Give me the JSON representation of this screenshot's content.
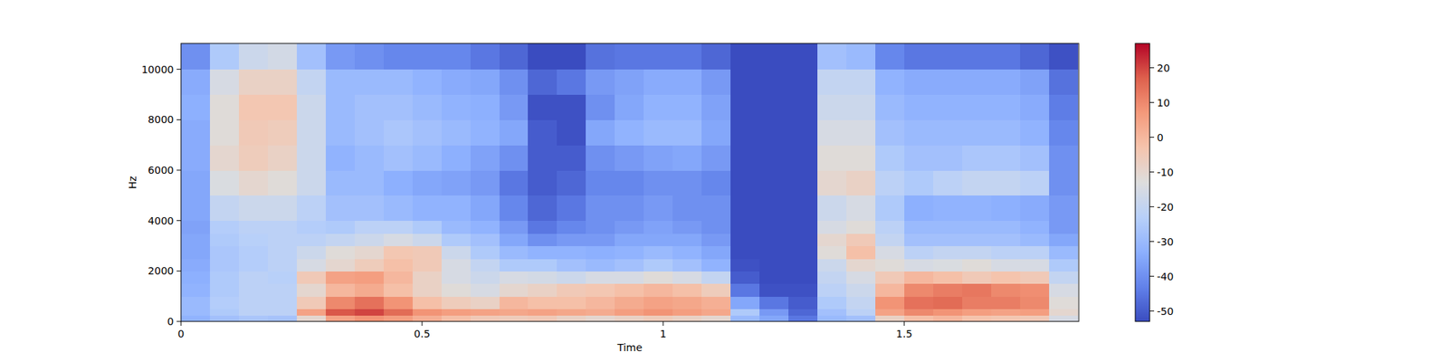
{
  "chart_data": {
    "type": "heatmap",
    "x_label": "Time",
    "y_label": "Hz",
    "xlim": [
      0,
      1.862
    ],
    "ylim": [
      0,
      11025
    ],
    "xticks": [
      0,
      0.5,
      1,
      1.5
    ],
    "yticks": [
      0,
      2000,
      4000,
      6000,
      8000,
      10000
    ],
    "x_bins": [
      0,
      0.06,
      0.12,
      0.18,
      0.24,
      0.3,
      0.36,
      0.42,
      0.48,
      0.54,
      0.6,
      0.66,
      0.72,
      0.78,
      0.84,
      0.9,
      0.96,
      1.02,
      1.08,
      1.14,
      1.2,
      1.26,
      1.32,
      1.38,
      1.44,
      1.5,
      1.56,
      1.62,
      1.68,
      1.74,
      1.8,
      1.86
    ],
    "y_bins": [
      0,
      250,
      500,
      1000,
      1500,
      2000,
      2500,
      3000,
      3500,
      4000,
      5000,
      6000,
      7000,
      8000,
      9000,
      10000,
      11025
    ],
    "values": [
      [
        -32,
        -28,
        -26,
        -27,
        -10,
        5,
        8,
        6,
        2,
        -2,
        -5,
        -6,
        -5,
        -8,
        -10,
        -8,
        -6,
        -8,
        -10,
        -30,
        -35,
        -45,
        -30,
        -28,
        -8,
        -2,
        0,
        -3,
        -4,
        -5,
        -15
      ],
      [
        -30,
        -25,
        -22,
        -22,
        5,
        18,
        20,
        15,
        8,
        6,
        5,
        4,
        5,
        4,
        3,
        6,
        8,
        6,
        4,
        -25,
        -38,
        -48,
        -28,
        -22,
        5,
        10,
        8,
        6,
        5,
        6,
        -10
      ],
      [
        -30,
        -24,
        -22,
        -22,
        -5,
        10,
        14,
        8,
        -2,
        -6,
        -8,
        0,
        -2,
        -2,
        0,
        3,
        5,
        4,
        2,
        -35,
        -45,
        -50,
        -25,
        -20,
        8,
        14,
        15,
        12,
        12,
        10,
        -12
      ],
      [
        -32,
        -25,
        -22,
        -22,
        -10,
        0,
        3,
        -2,
        -8,
        -12,
        -15,
        -10,
        -8,
        -5,
        -4,
        -2,
        0,
        -2,
        -6,
        -45,
        -52,
        -52,
        -22,
        -18,
        0,
        10,
        12,
        13,
        10,
        9,
        -15
      ],
      [
        -33,
        -25,
        -22,
        -23,
        -5,
        5,
        6,
        0,
        -8,
        -15,
        -18,
        -15,
        -16,
        -18,
        -15,
        -15,
        -12,
        -15,
        -20,
        -50,
        -53,
        -53,
        -20,
        -15,
        -5,
        0,
        -2,
        -5,
        -3,
        -5,
        -20
      ],
      [
        -34,
        -26,
        -24,
        -22,
        -15,
        -10,
        -6,
        -2,
        -5,
        -15,
        -20,
        -25,
        -25,
        -28,
        -30,
        -28,
        -25,
        -28,
        -32,
        -52,
        -53,
        -53,
        -18,
        -10,
        -12,
        -15,
        -14,
        -12,
        -15,
        -15,
        -25
      ],
      [
        -35,
        -26,
        -24,
        -22,
        -18,
        -12,
        -10,
        -4,
        -5,
        -18,
        -25,
        -30,
        -32,
        -32,
        -33,
        -32,
        -30,
        -32,
        -35,
        -53,
        -53,
        -53,
        -12,
        -2,
        -15,
        -22,
        -20,
        -20,
        -22,
        -22,
        -30
      ],
      [
        -35,
        -25,
        -23,
        -22,
        -22,
        -20,
        -18,
        -15,
        -18,
        -25,
        -28,
        -35,
        -40,
        -38,
        -38,
        -35,
        -35,
        -35,
        -38,
        -53,
        -53,
        -53,
        -10,
        -5,
        -20,
        -28,
        -28,
        -28,
        -28,
        -30,
        -35
      ],
      [
        -36,
        -24,
        -22,
        -22,
        -24,
        -25,
        -22,
        -22,
        -25,
        -30,
        -32,
        -38,
        -45,
        -42,
        -40,
        -38,
        -36,
        -38,
        -40,
        -53,
        -53,
        -53,
        -15,
        -12,
        -22,
        -30,
        -30,
        -30,
        -30,
        -32,
        -38
      ],
      [
        -35,
        -20,
        -18,
        -18,
        -22,
        -28,
        -28,
        -30,
        -32,
        -32,
        -35,
        -42,
        -48,
        -45,
        -40,
        -40,
        -38,
        -40,
        -40,
        -53,
        -53,
        -53,
        -18,
        -15,
        -25,
        -33,
        -32,
        -32,
        -33,
        -34,
        -38
      ],
      [
        -35,
        -14,
        -10,
        -12,
        -18,
        -30,
        -30,
        -33,
        -35,
        -36,
        -38,
        -45,
        -50,
        -48,
        -42,
        -42,
        -40,
        -40,
        -42,
        -53,
        -53,
        -53,
        -10,
        -8,
        -22,
        -25,
        -22,
        -20,
        -20,
        -22,
        -40
      ],
      [
        -34,
        -10,
        -6,
        -8,
        -18,
        -32,
        -30,
        -28,
        -30,
        -33,
        -36,
        -40,
        -50,
        -50,
        -40,
        -38,
        -36,
        -35,
        -38,
        -53,
        -53,
        -53,
        -12,
        -12,
        -25,
        -28,
        -28,
        -26,
        -26,
        -28,
        -40
      ],
      [
        -34,
        -12,
        -5,
        -6,
        -18,
        -30,
        -28,
        -26,
        -28,
        -30,
        -32,
        -35,
        -50,
        -52,
        -35,
        -32,
        -30,
        -30,
        -35,
        -53,
        -53,
        -53,
        -15,
        -15,
        -28,
        -30,
        -30,
        -30,
        -30,
        -32,
        -42
      ],
      [
        -33,
        -12,
        -4,
        -4,
        -18,
        -30,
        -28,
        -28,
        -30,
        -32,
        -33,
        -38,
        -52,
        -52,
        -40,
        -35,
        -32,
        -32,
        -36,
        -53,
        -53,
        -53,
        -18,
        -18,
        -30,
        -32,
        -32,
        -32,
        -32,
        -34,
        -44
      ],
      [
        -34,
        -15,
        -8,
        -8,
        -20,
        -30,
        -30,
        -30,
        -32,
        -34,
        -35,
        -40,
        -48,
        -45,
        -38,
        -36,
        -34,
        -34,
        -38,
        -53,
        -53,
        -53,
        -20,
        -20,
        -32,
        -34,
        -34,
        -34,
        -34,
        -36,
        -46
      ],
      [
        -40,
        -25,
        -18,
        -16,
        -28,
        -38,
        -40,
        -42,
        -42,
        -42,
        -45,
        -48,
        -53,
        -53,
        -46,
        -45,
        -45,
        -45,
        -48,
        -53,
        -53,
        -53,
        -28,
        -30,
        -42,
        -45,
        -45,
        -45,
        -45,
        -48,
        -52
      ]
    ],
    "colorbar": {
      "range": [
        -53,
        27
      ],
      "ticks": [
        -50,
        -40,
        -30,
        -20,
        -10,
        0,
        10,
        20
      ]
    }
  }
}
